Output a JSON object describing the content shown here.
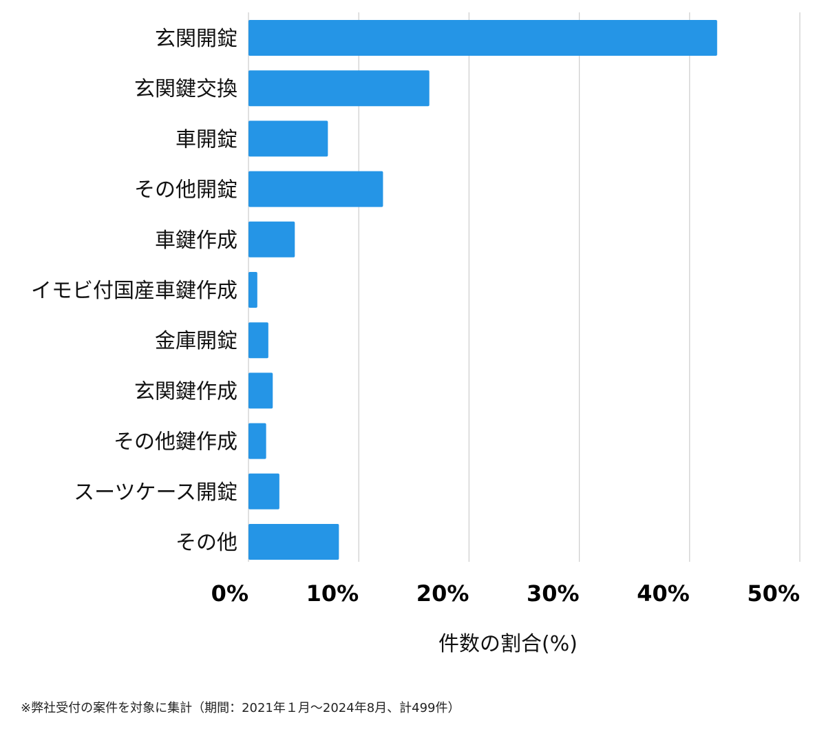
{
  "chart_data": {
    "type": "bar",
    "orientation": "horizontal",
    "categories": [
      "玄関開錠",
      "玄関鍵交換",
      "車開錠",
      "その他開錠",
      "車鍵作成",
      "イモビ付国産車鍵作成",
      "金庫開錠",
      "玄関鍵作成",
      "その他鍵作成",
      "スーツケース開錠",
      "その他"
    ],
    "values": [
      42.5,
      16.4,
      7.2,
      12.2,
      4.2,
      0.8,
      1.8,
      2.2,
      1.6,
      2.8,
      8.2
    ],
    "xlabel": "件数の割合(%)",
    "xlim": [
      0,
      50
    ],
    "xticks": [
      0,
      10,
      20,
      30,
      40,
      50
    ],
    "xtick_labels": [
      "0%",
      "10%",
      "20%",
      "30%",
      "40%",
      "50%"
    ],
    "grid": true,
    "bar_color": "#2595e6",
    "grid_color": "#cccccc"
  },
  "footnote": "※弊社受付の案件を対象に集計（期間：2021年１月〜2024年8月、計499件）"
}
